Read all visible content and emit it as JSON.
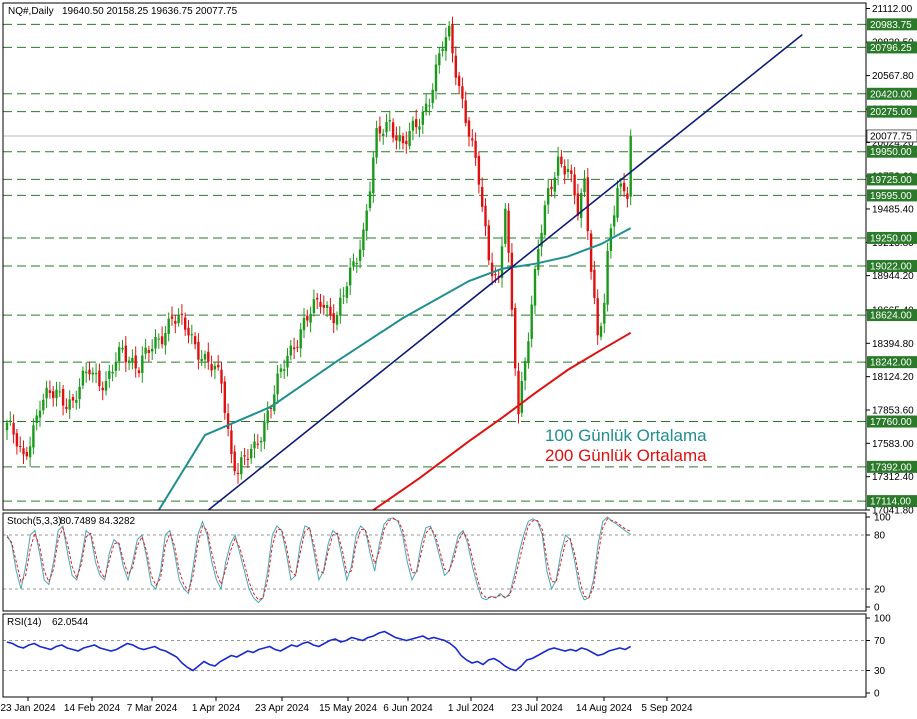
{
  "header": {
    "symbol": "NQ#,Daily",
    "ohlc": "19640.50 20158.25 19636.75 20077.75"
  },
  "colors": {
    "bull": "#1a9a1a",
    "bear": "#e01010",
    "ma100": "#1f8f8f",
    "ma200": "#e01010",
    "trendline": "#0b1a7a",
    "level_line": "#2a7a2a",
    "level_label_bg": "#2a7a2a",
    "stoch_main": "#4aa8b8",
    "stoch_signal": "#e02020",
    "rsi_line": "#1a2ad0"
  },
  "chart_data": [
    {
      "type": "candlestick",
      "symbol": "NQ#",
      "timeframe": "Daily",
      "current_price": "20077.75",
      "ylim": [
        17041.8,
        21156.9
      ],
      "y_ticks": [
        "21112.00",
        "20839.50",
        "20567.80",
        "20296.00",
        "20024.20",
        "19752.60",
        "19485.40",
        "19213.80",
        "18944.20",
        "18665.40",
        "18394.80",
        "18124.20",
        "17853.60",
        "17583.00",
        "17312.40",
        "17041.80"
      ],
      "horizontal_levels": [
        "20983.75",
        "20796.25",
        "20420.00",
        "20275.00",
        "19950.00",
        "19725.00",
        "19595.00",
        "19250.00",
        "19022.00",
        "18624.00",
        "18242.00",
        "17760.00",
        "17392.00",
        "17114.00"
      ],
      "x_ticks": [
        "23 Jan 2024",
        "14 Feb 2024",
        "7 Mar 2024",
        "1 Apr 2024",
        "23 Apr 2024",
        "15 May 2024",
        "6 Jun 2024",
        "1 Jul 2024",
        "23 Jul 2024",
        "14 Aug 2024",
        "5 Sep 2024"
      ],
      "annotations": [
        {
          "text": "100 Günlük Ortalama",
          "color": "#1f8f8f"
        },
        {
          "text": "200 Günlük Ortalama",
          "color": "#e01010"
        }
      ],
      "anchors": [
        {
          "i": 0,
          "c": 17750
        },
        {
          "i": 5,
          "c": 17450
        },
        {
          "i": 10,
          "c": 17900
        },
        {
          "i": 15,
          "c": 18000
        },
        {
          "i": 20,
          "c": 17900
        },
        {
          "i": 25,
          "c": 18200
        },
        {
          "i": 30,
          "c": 18050
        },
        {
          "i": 35,
          "c": 18350
        },
        {
          "i": 40,
          "c": 18200
        },
        {
          "i": 45,
          "c": 18400
        },
        {
          "i": 50,
          "c": 18600
        },
        {
          "i": 55,
          "c": 18500
        },
        {
          "i": 60,
          "c": 18250
        },
        {
          "i": 65,
          "c": 18100
        },
        {
          "i": 68,
          "c": 17500
        },
        {
          "i": 70,
          "c": 17350
        },
        {
          "i": 75,
          "c": 17550
        },
        {
          "i": 80,
          "c": 17900
        },
        {
          "i": 85,
          "c": 18300
        },
        {
          "i": 90,
          "c": 18550
        },
        {
          "i": 95,
          "c": 18750
        },
        {
          "i": 100,
          "c": 18600
        },
        {
          "i": 104,
          "c": 18950
        },
        {
          "i": 108,
          "c": 19300
        },
        {
          "i": 112,
          "c": 20050
        },
        {
          "i": 116,
          "c": 20200
        },
        {
          "i": 120,
          "c": 20000
        },
        {
          "i": 124,
          "c": 20150
        },
        {
          "i": 128,
          "c": 20400
        },
        {
          "i": 132,
          "c": 20800
        },
        {
          "i": 134,
          "c": 20900
        },
        {
          "i": 137,
          "c": 20500
        },
        {
          "i": 140,
          "c": 20100
        },
        {
          "i": 143,
          "c": 19700
        },
        {
          "i": 146,
          "c": 19100
        },
        {
          "i": 149,
          "c": 18900
        },
        {
          "i": 151,
          "c": 19500
        },
        {
          "i": 153,
          "c": 18600
        },
        {
          "i": 155,
          "c": 17850
        },
        {
          "i": 158,
          "c": 18500
        },
        {
          "i": 161,
          "c": 19150
        },
        {
          "i": 164,
          "c": 19600
        },
        {
          "i": 167,
          "c": 19900
        },
        {
          "i": 170,
          "c": 19800
        },
        {
          "i": 173,
          "c": 19450
        },
        {
          "i": 175,
          "c": 19700
        },
        {
          "i": 177,
          "c": 19050
        },
        {
          "i": 179,
          "c": 18450
        },
        {
          "i": 181,
          "c": 18700
        },
        {
          "i": 182,
          "c": 19050
        },
        {
          "i": 183,
          "c": 19300
        },
        {
          "i": 185,
          "c": 19650
        },
        {
          "i": 187,
          "c": 19700
        },
        {
          "i": 188,
          "c": 19640
        },
        {
          "i": 189,
          "c": 20077
        }
      ],
      "moving_averages": [
        {
          "name": "100 Günlük Ortalama",
          "color": "#1f8f8f",
          "points": [
            {
              "i": 46,
              "v": 17041
            },
            {
              "i": 60,
              "v": 17650
            },
            {
              "i": 80,
              "v": 17880
            },
            {
              "i": 100,
              "v": 18250
            },
            {
              "i": 120,
              "v": 18600
            },
            {
              "i": 140,
              "v": 18900
            },
            {
              "i": 150,
              "v": 19000
            },
            {
              "i": 160,
              "v": 19040
            },
            {
              "i": 170,
              "v": 19100
            },
            {
              "i": 180,
              "v": 19200
            },
            {
              "i": 189,
              "v": 19330
            }
          ]
        },
        {
          "name": "200 Günlük Ortalama",
          "color": "#e01010",
          "points": [
            {
              "i": 111,
              "v": 17041
            },
            {
              "i": 125,
              "v": 17300
            },
            {
              "i": 140,
              "v": 17600
            },
            {
              "i": 150,
              "v": 17790
            },
            {
              "i": 160,
              "v": 17990
            },
            {
              "i": 170,
              "v": 18180
            },
            {
              "i": 180,
              "v": 18340
            },
            {
              "i": 189,
              "v": 18480
            }
          ]
        }
      ],
      "trendline": {
        "from": {
          "i": 61,
          "v": 17041
        },
        "to": {
          "i": 241,
          "v": 20900
        }
      }
    },
    {
      "type": "line",
      "name": "Stoch(5,3,3)",
      "values_text": "80.7489 84.3282",
      "ylim": [
        0,
        100
      ],
      "y_ticks": [
        "100",
        "80",
        "20",
        "0"
      ],
      "levels": [
        80,
        20
      ],
      "series": [
        {
          "name": "main",
          "color": "#4aa8b8",
          "values": [
            80,
            70,
            40,
            20,
            45,
            80,
            85,
            60,
            30,
            25,
            50,
            85,
            90,
            60,
            35,
            30,
            55,
            85,
            80,
            50,
            35,
            30,
            60,
            75,
            70,
            45,
            30,
            50,
            75,
            80,
            55,
            25,
            20,
            40,
            80,
            85,
            60,
            30,
            20,
            15,
            45,
            80,
            95,
            80,
            50,
            30,
            20,
            50,
            70,
            80,
            60,
            40,
            20,
            10,
            5,
            10,
            40,
            80,
            90,
            85,
            60,
            30,
            35,
            70,
            90,
            88,
            60,
            30,
            40,
            70,
            85,
            80,
            55,
            30,
            45,
            80,
            90,
            85,
            60,
            40,
            70,
            92,
            98,
            99,
            95,
            80,
            50,
            30,
            40,
            70,
            88,
            90,
            75,
            55,
            35,
            40,
            60,
            80,
            85,
            70,
            45,
            25,
            10,
            8,
            12,
            10,
            15,
            10,
            15,
            35,
            60,
            80,
            95,
            98,
            95,
            80,
            40,
            20,
            30,
            60,
            80,
            75,
            50,
            20,
            8,
            10,
            30,
            70,
            95,
            100,
            95,
            92,
            88,
            84,
            80.7
          ]
        },
        {
          "name": "signal",
          "color": "#e02020",
          "values": [
            78,
            72,
            50,
            28,
            35,
            65,
            82,
            68,
            40,
            28,
            42,
            75,
            88,
            70,
            45,
            32,
            48,
            78,
            82,
            60,
            40,
            32,
            52,
            70,
            72,
            52,
            36,
            44,
            68,
            78,
            62,
            35,
            24,
            32,
            68,
            82,
            68,
            40,
            25,
            18,
            35,
            70,
            90,
            85,
            60,
            38,
            25,
            42,
            62,
            76,
            66,
            48,
            28,
            15,
            8,
            10,
            30,
            68,
            86,
            86,
            68,
            40,
            35,
            60,
            84,
            88,
            68,
            40,
            38,
            62,
            80,
            82,
            64,
            38,
            40,
            70,
            86,
            86,
            68,
            48,
            62,
            86,
            96,
            98,
            96,
            86,
            62,
            38,
            38,
            60,
            82,
            88,
            80,
            62,
            42,
            40,
            54,
            74,
            83,
            75,
            54,
            32,
            15,
            10,
            11,
            11,
            13,
            11,
            13,
            28,
            50,
            72,
            90,
            96,
            96,
            86,
            52,
            28,
            28,
            50,
            72,
            76,
            58,
            30,
            12,
            10,
            22,
            58,
            88,
            98,
            96,
            94,
            90,
            86,
            84.3
          ]
        }
      ]
    },
    {
      "type": "line",
      "name": "RSI(14)",
      "values_text": "62.0544",
      "ylim": [
        0,
        100
      ],
      "y_ticks": [
        "100",
        "70",
        "30",
        "0"
      ],
      "levels": [
        70,
        30
      ],
      "series": [
        {
          "name": "RSI(14)",
          "color": "#1a2ad0",
          "values": [
            68,
            66,
            62,
            60,
            64,
            66,
            62,
            60,
            58,
            62,
            64,
            60,
            58,
            56,
            60,
            62,
            64,
            60,
            58,
            56,
            58,
            62,
            66,
            64,
            60,
            58,
            60,
            62,
            58,
            56,
            52,
            48,
            40,
            34,
            30,
            36,
            42,
            38,
            36,
            42,
            46,
            50,
            48,
            52,
            56,
            54,
            58,
            60,
            62,
            58,
            56,
            60,
            64,
            62,
            66,
            68,
            64,
            62,
            66,
            70,
            72,
            68,
            70,
            74,
            72,
            70,
            74,
            76,
            80,
            82,
            78,
            74,
            72,
            70,
            72,
            74,
            76,
            72,
            74,
            72,
            70,
            66,
            60,
            50,
            44,
            40,
            42,
            38,
            44,
            46,
            42,
            36,
            32,
            30,
            36,
            44,
            46,
            50,
            54,
            58,
            60,
            58,
            56,
            58,
            56,
            60,
            58,
            54,
            50,
            52,
            56,
            58,
            60,
            58,
            62.05
          ]
        }
      ]
    }
  ]
}
